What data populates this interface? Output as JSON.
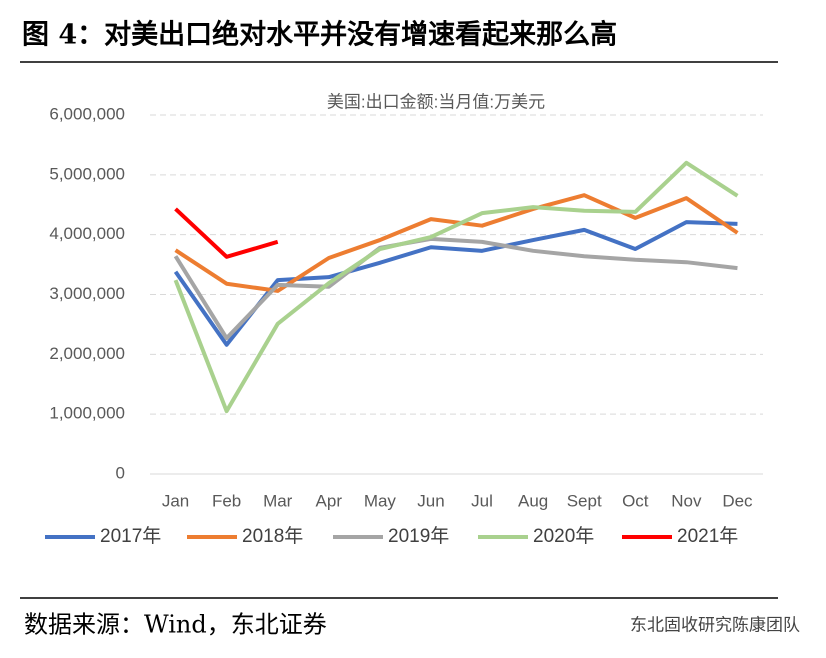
{
  "figure_title": "图 4：对美出口绝对水平并没有增速看起来那么高",
  "source": "数据来源：Wind，东北证券",
  "watermark": "东北固收研究陈康团队",
  "chart_data": {
    "type": "line",
    "title": "美国:出口金额:当月值:万美元",
    "categories": [
      "Jan",
      "Feb",
      "Mar",
      "Apr",
      "May",
      "Jun",
      "Jul",
      "Aug",
      "Sept",
      "Oct",
      "Nov",
      "Dec"
    ],
    "series": [
      {
        "name": "2017年",
        "color": "#4472c4",
        "values": [
          3380000,
          2160000,
          3240000,
          3290000,
          3530000,
          3790000,
          3730000,
          3910000,
          4080000,
          3760000,
          4210000,
          4180000
        ]
      },
      {
        "name": "2018年",
        "color": "#ed7d31",
        "values": [
          3740000,
          3180000,
          3060000,
          3610000,
          3910000,
          4260000,
          4150000,
          4430000,
          4660000,
          4280000,
          4610000,
          4030000
        ]
      },
      {
        "name": "2019年",
        "color": "#a5a5a5",
        "values": [
          3640000,
          2270000,
          3160000,
          3130000,
          3780000,
          3930000,
          3880000,
          3730000,
          3640000,
          3580000,
          3540000,
          3440000
        ]
      },
      {
        "name": "2020年",
        "color": "#a9d18e",
        "values": [
          3240000,
          1050000,
          2510000,
          3190000,
          3760000,
          3960000,
          4360000,
          4460000,
          4400000,
          4380000,
          5200000,
          4650000
        ]
      },
      {
        "name": "2021年",
        "color": "#ff0000",
        "values": [
          4430000,
          3630000,
          3880000,
          null,
          null,
          null,
          null,
          null,
          null,
          null,
          null,
          null
        ]
      }
    ],
    "ylim": [
      0,
      6000000
    ],
    "yticks": [
      0,
      {
        "value": 1000000,
        "label": "1,000,000"
      },
      {
        "value": 2000000,
        "label": "2,000,000"
      },
      {
        "value": 3000000,
        "label": "3,000,000"
      },
      {
        "value": 4000000,
        "label": "4,000,000"
      },
      {
        "value": 5000000,
        "label": "5,000,000"
      },
      {
        "value": 6000000,
        "label": "6,000,000"
      }
    ],
    "grid": true,
    "legend": "bottom"
  }
}
